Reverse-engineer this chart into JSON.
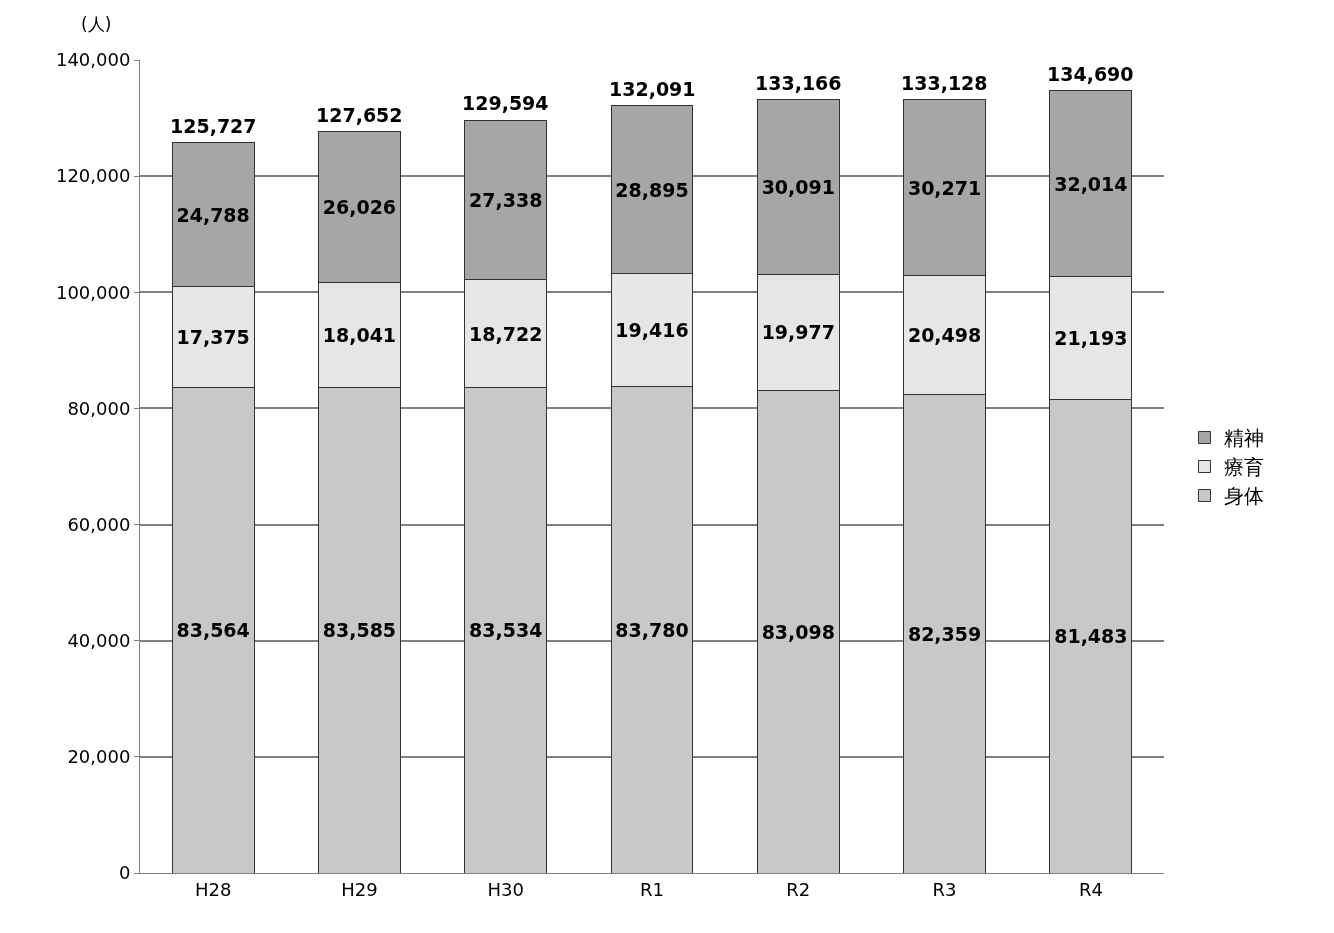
{
  "chart_data": {
    "type": "bar",
    "stacked": true,
    "ylabel": "(人)",
    "categories": [
      "H28",
      "H29",
      "H30",
      "R1",
      "R2",
      "R3",
      "R4"
    ],
    "series": [
      {
        "name": "身体",
        "color": "#c8c8c8",
        "values": [
          83564,
          83585,
          83534,
          83780,
          83098,
          82359,
          81483
        ],
        "value_labels": [
          "83,564",
          "83,585",
          "83,534",
          "83,780",
          "83,098",
          "82,359",
          "81,483"
        ]
      },
      {
        "name": "療育",
        "color": "#e6e6e6",
        "values": [
          17375,
          18041,
          18722,
          19416,
          19977,
          20498,
          21193
        ],
        "value_labels": [
          "17,375",
          "18,041",
          "18,722",
          "19,416",
          "19,977",
          "20,498",
          "21,193"
        ]
      },
      {
        "name": "精神",
        "color": "#a6a6a6",
        "values": [
          24788,
          26026,
          27338,
          28895,
          30091,
          30271,
          32014
        ],
        "value_labels": [
          "24,788",
          "26,026",
          "27,338",
          "28,895",
          "30,091",
          "30,271",
          "32,014"
        ]
      }
    ],
    "totals": [
      "125,727",
      "127,652",
      "129,594",
      "132,091",
      "133,166",
      "133,128",
      "134,690"
    ],
    "ylim": [
      0,
      140000
    ],
    "yticks": [
      0,
      {
        "value": 20000,
        "label": "20,000"
      },
      {
        "value": 40000,
        "label": "40,000"
      },
      {
        "value": 60000,
        "label": "60,000"
      },
      {
        "value": 80000,
        "label": "80,000"
      },
      {
        "value": 100000,
        "label": "100,000"
      },
      {
        "value": 120000,
        "label": "120,000"
      },
      {
        "value": 140000,
        "label": "140,000"
      }
    ],
    "grid": "y",
    "legend": "right"
  }
}
